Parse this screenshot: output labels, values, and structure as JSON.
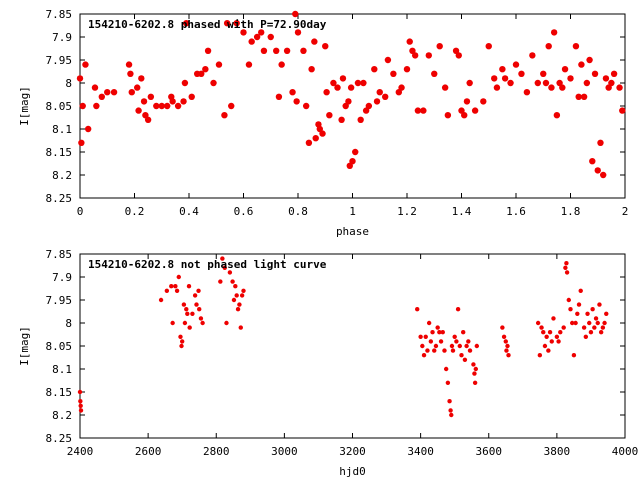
{
  "colors": {
    "points": "#ee0000",
    "frame": "#000000",
    "background": "#ffffff"
  },
  "chart_data": [
    {
      "type": "scatter",
      "title": "154210-6202.8 phased with P=72.90day",
      "xlabel": "phase",
      "ylabel": "I[mag]",
      "xlim": [
        0,
        2
      ],
      "ylim": [
        8.25,
        7.85
      ],
      "y_inverted": true,
      "grid": false,
      "xticks": [
        0,
        0.2,
        0.4,
        0.6,
        0.8,
        1,
        1.2,
        1.4,
        1.6,
        1.8,
        2
      ],
      "xtick_labels": [
        "0",
        "0.2",
        "0.4",
        "0.6",
        "0.8",
        "1",
        "1.2",
        "1.4",
        "1.6",
        "1.8",
        "2"
      ],
      "yticks": [
        7.85,
        7.9,
        7.95,
        8,
        8.05,
        8.1,
        8.15,
        8.2,
        8.25
      ],
      "ytick_labels": [
        "7.85",
        "7.9",
        "7.95",
        "8",
        "8.05",
        "8.1",
        "8.15",
        "8.2",
        "8.25"
      ],
      "points": [
        [
          0.0,
          7.99
        ],
        [
          0.005,
          8.13
        ],
        [
          0.01,
          8.05
        ],
        [
          0.02,
          7.96
        ],
        [
          0.03,
          8.1
        ],
        [
          0.055,
          8.01
        ],
        [
          0.06,
          8.05
        ],
        [
          0.08,
          8.03
        ],
        [
          0.1,
          8.02
        ],
        [
          0.125,
          8.02
        ],
        [
          0.18,
          7.96
        ],
        [
          0.185,
          7.98
        ],
        [
          0.19,
          8.02
        ],
        [
          0.21,
          8.01
        ],
        [
          0.215,
          8.06
        ],
        [
          0.225,
          7.99
        ],
        [
          0.235,
          8.04
        ],
        [
          0.24,
          8.07
        ],
        [
          0.25,
          8.08
        ],
        [
          0.26,
          8.03
        ],
        [
          0.28,
          8.05
        ],
        [
          0.3,
          8.05
        ],
        [
          0.32,
          8.05
        ],
        [
          0.335,
          8.03
        ],
        [
          0.34,
          8.04
        ],
        [
          0.36,
          8.05
        ],
        [
          0.38,
          8.04
        ],
        [
          0.385,
          8.0
        ],
        [
          0.39,
          7.87
        ],
        [
          0.41,
          8.03
        ],
        [
          0.43,
          7.98
        ],
        [
          0.445,
          7.98
        ],
        [
          0.46,
          7.97
        ],
        [
          0.47,
          7.93
        ],
        [
          0.49,
          8.0
        ],
        [
          0.51,
          7.96
        ],
        [
          0.53,
          8.07
        ],
        [
          0.54,
          7.87
        ],
        [
          0.555,
          8.05
        ],
        [
          0.575,
          7.87
        ],
        [
          0.6,
          7.89
        ],
        [
          0.62,
          7.96
        ],
        [
          0.63,
          7.91
        ],
        [
          0.65,
          7.9
        ],
        [
          0.665,
          7.89
        ],
        [
          0.675,
          7.93
        ],
        [
          0.7,
          7.9
        ],
        [
          0.72,
          7.93
        ],
        [
          0.73,
          8.03
        ],
        [
          0.74,
          7.96
        ],
        [
          0.76,
          7.93
        ],
        [
          0.78,
          8.02
        ],
        [
          0.79,
          7.85
        ],
        [
          0.795,
          8.04
        ],
        [
          0.8,
          7.89
        ],
        [
          0.82,
          7.93
        ],
        [
          0.83,
          8.05
        ],
        [
          0.84,
          8.13
        ],
        [
          0.85,
          7.97
        ],
        [
          0.86,
          7.91
        ],
        [
          0.865,
          8.12
        ],
        [
          0.875,
          8.09
        ],
        [
          0.88,
          8.1
        ],
        [
          0.89,
          8.11
        ],
        [
          0.9,
          7.92
        ],
        [
          0.905,
          8.02
        ],
        [
          0.915,
          8.07
        ],
        [
          0.93,
          8.0
        ],
        [
          0.945,
          8.01
        ],
        [
          0.96,
          8.08
        ],
        [
          0.965,
          7.99
        ],
        [
          0.975,
          8.05
        ],
        [
          0.985,
          8.04
        ],
        [
          0.99,
          8.18
        ],
        [
          0.995,
          8.01
        ],
        [
          1.0,
          8.17
        ],
        [
          1.01,
          8.15
        ],
        [
          1.02,
          8.0
        ],
        [
          1.03,
          8.08
        ],
        [
          1.04,
          8.0
        ],
        [
          1.05,
          8.06
        ],
        [
          1.06,
          8.05
        ],
        [
          1.08,
          7.97
        ],
        [
          1.09,
          8.04
        ],
        [
          1.1,
          8.02
        ],
        [
          1.12,
          8.03
        ],
        [
          1.13,
          7.95
        ],
        [
          1.15,
          7.98
        ],
        [
          1.17,
          8.02
        ],
        [
          1.18,
          8.01
        ],
        [
          1.2,
          7.97
        ],
        [
          1.21,
          7.91
        ],
        [
          1.22,
          7.93
        ],
        [
          1.23,
          7.94
        ],
        [
          1.24,
          8.06
        ],
        [
          1.26,
          8.06
        ],
        [
          1.28,
          7.94
        ],
        [
          1.3,
          7.98
        ],
        [
          1.32,
          7.92
        ],
        [
          1.34,
          8.01
        ],
        [
          1.35,
          8.07
        ],
        [
          1.38,
          7.93
        ],
        [
          1.39,
          7.94
        ],
        [
          1.4,
          8.06
        ],
        [
          1.41,
          8.07
        ],
        [
          1.42,
          8.04
        ],
        [
          1.43,
          8.0
        ],
        [
          1.45,
          8.06
        ],
        [
          1.48,
          8.04
        ],
        [
          1.5,
          7.92
        ],
        [
          1.52,
          7.99
        ],
        [
          1.53,
          8.01
        ],
        [
          1.55,
          7.97
        ],
        [
          1.56,
          7.99
        ],
        [
          1.58,
          8.0
        ],
        [
          1.6,
          7.96
        ],
        [
          1.62,
          7.98
        ],
        [
          1.64,
          8.02
        ],
        [
          1.66,
          7.94
        ],
        [
          1.68,
          8.0
        ],
        [
          1.7,
          7.98
        ],
        [
          1.71,
          8.0
        ],
        [
          1.72,
          7.92
        ],
        [
          1.73,
          8.01
        ],
        [
          1.74,
          7.89
        ],
        [
          1.75,
          8.07
        ],
        [
          1.76,
          8.0
        ],
        [
          1.77,
          8.01
        ],
        [
          1.78,
          7.97
        ],
        [
          1.8,
          7.99
        ],
        [
          1.82,
          7.92
        ],
        [
          1.83,
          8.03
        ],
        [
          1.84,
          7.96
        ],
        [
          1.85,
          8.03
        ],
        [
          1.86,
          8.0
        ],
        [
          1.87,
          7.95
        ],
        [
          1.88,
          8.17
        ],
        [
          1.89,
          7.98
        ],
        [
          1.9,
          8.19
        ],
        [
          1.91,
          8.13
        ],
        [
          1.92,
          8.2
        ],
        [
          1.93,
          7.99
        ],
        [
          1.94,
          8.01
        ],
        [
          1.95,
          8.0
        ],
        [
          1.96,
          7.98
        ],
        [
          1.98,
          8.01
        ],
        [
          1.99,
          8.06
        ]
      ]
    },
    {
      "type": "scatter",
      "title": "154210-6202.8 not phased light curve",
      "xlabel": "hjd0",
      "ylabel": "I[mag]",
      "xlim": [
        2400,
        4000
      ],
      "ylim": [
        8.25,
        7.85
      ],
      "y_inverted": true,
      "grid": false,
      "xticks": [
        2400,
        2600,
        2800,
        3000,
        3200,
        3400,
        3600,
        3800,
        4000
      ],
      "xtick_labels": [
        "2400",
        "2600",
        "2800",
        "3000",
        "3200",
        "3400",
        "3600",
        "3800",
        "4000"
      ],
      "yticks": [
        7.85,
        7.9,
        7.95,
        8,
        8.05,
        8.1,
        8.15,
        8.2,
        8.25
      ],
      "ytick_labels": [
        "7.85",
        "7.9",
        "7.95",
        "8",
        "8.05",
        "8.1",
        "8.15",
        "8.2",
        "8.25"
      ],
      "points": [
        [
          2400,
          8.15
        ],
        [
          2401,
          8.17
        ],
        [
          2402,
          8.18
        ],
        [
          2403,
          8.19
        ],
        [
          2638,
          7.95
        ],
        [
          2655,
          7.93
        ],
        [
          2668,
          7.92
        ],
        [
          2672,
          8.0
        ],
        [
          2680,
          7.92
        ],
        [
          2685,
          7.93
        ],
        [
          2690,
          7.9
        ],
        [
          2695,
          8.03
        ],
        [
          2698,
          8.05
        ],
        [
          2700,
          8.04
        ],
        [
          2705,
          7.96
        ],
        [
          2708,
          8.0
        ],
        [
          2712,
          7.97
        ],
        [
          2715,
          7.98
        ],
        [
          2720,
          7.92
        ],
        [
          2722,
          8.01
        ],
        [
          2730,
          7.98
        ],
        [
          2738,
          7.94
        ],
        [
          2742,
          7.96
        ],
        [
          2748,
          7.93
        ],
        [
          2750,
          7.97
        ],
        [
          2755,
          7.99
        ],
        [
          2760,
          8.0
        ],
        [
          2812,
          7.91
        ],
        [
          2818,
          7.86
        ],
        [
          2825,
          7.88
        ],
        [
          2830,
          8.0
        ],
        [
          2840,
          7.89
        ],
        [
          2848,
          7.91
        ],
        [
          2852,
          7.95
        ],
        [
          2856,
          7.92
        ],
        [
          2860,
          7.94
        ],
        [
          2864,
          7.97
        ],
        [
          2868,
          7.96
        ],
        [
          2872,
          8.01
        ],
        [
          2876,
          7.94
        ],
        [
          2880,
          7.93
        ],
        [
          3390,
          7.97
        ],
        [
          3400,
          8.03
        ],
        [
          3405,
          8.05
        ],
        [
          3410,
          8.07
        ],
        [
          3415,
          8.03
        ],
        [
          3420,
          8.06
        ],
        [
          3425,
          8.0
        ],
        [
          3430,
          8.04
        ],
        [
          3435,
          8.02
        ],
        [
          3440,
          8.06
        ],
        [
          3445,
          8.05
        ],
        [
          3450,
          8.01
        ],
        [
          3455,
          8.02
        ],
        [
          3460,
          8.04
        ],
        [
          3465,
          8.02
        ],
        [
          3470,
          8.06
        ],
        [
          3475,
          8.1
        ],
        [
          3480,
          8.13
        ],
        [
          3485,
          8.17
        ],
        [
          3488,
          8.19
        ],
        [
          3490,
          8.2
        ],
        [
          3492,
          8.05
        ],
        [
          3495,
          8.06
        ],
        [
          3500,
          8.03
        ],
        [
          3505,
          8.04
        ],
        [
          3510,
          7.97
        ],
        [
          3515,
          8.05
        ],
        [
          3520,
          8.07
        ],
        [
          3525,
          8.02
        ],
        [
          3530,
          8.08
        ],
        [
          3535,
          8.05
        ],
        [
          3540,
          8.04
        ],
        [
          3545,
          8.06
        ],
        [
          3555,
          8.09
        ],
        [
          3558,
          8.11
        ],
        [
          3560,
          8.13
        ],
        [
          3562,
          8.1
        ],
        [
          3565,
          8.05
        ],
        [
          3640,
          8.01
        ],
        [
          3645,
          8.03
        ],
        [
          3650,
          8.04
        ],
        [
          3652,
          8.06
        ],
        [
          3655,
          8.05
        ],
        [
          3658,
          8.07
        ],
        [
          3745,
          8.0
        ],
        [
          3750,
          8.07
        ],
        [
          3755,
          8.01
        ],
        [
          3760,
          8.02
        ],
        [
          3765,
          8.05
        ],
        [
          3770,
          8.03
        ],
        [
          3775,
          8.06
        ],
        [
          3780,
          8.02
        ],
        [
          3785,
          8.04
        ],
        [
          3790,
          7.99
        ],
        [
          3800,
          8.03
        ],
        [
          3805,
          8.04
        ],
        [
          3810,
          8.02
        ],
        [
          3820,
          8.01
        ],
        [
          3825,
          7.88
        ],
        [
          3828,
          7.87
        ],
        [
          3830,
          7.89
        ],
        [
          3835,
          7.95
        ],
        [
          3840,
          7.97
        ],
        [
          3845,
          8.0
        ],
        [
          3850,
          8.07
        ],
        [
          3855,
          8.0
        ],
        [
          3860,
          7.98
        ],
        [
          3865,
          7.96
        ],
        [
          3870,
          7.93
        ],
        [
          3880,
          8.01
        ],
        [
          3885,
          8.03
        ],
        [
          3890,
          7.98
        ],
        [
          3895,
          8.0
        ],
        [
          3900,
          8.02
        ],
        [
          3905,
          7.97
        ],
        [
          3910,
          8.01
        ],
        [
          3915,
          7.99
        ],
        [
          3920,
          8.0
        ],
        [
          3925,
          7.96
        ],
        [
          3930,
          8.02
        ],
        [
          3935,
          8.01
        ],
        [
          3940,
          8.0
        ],
        [
          3945,
          7.98
        ]
      ]
    }
  ]
}
